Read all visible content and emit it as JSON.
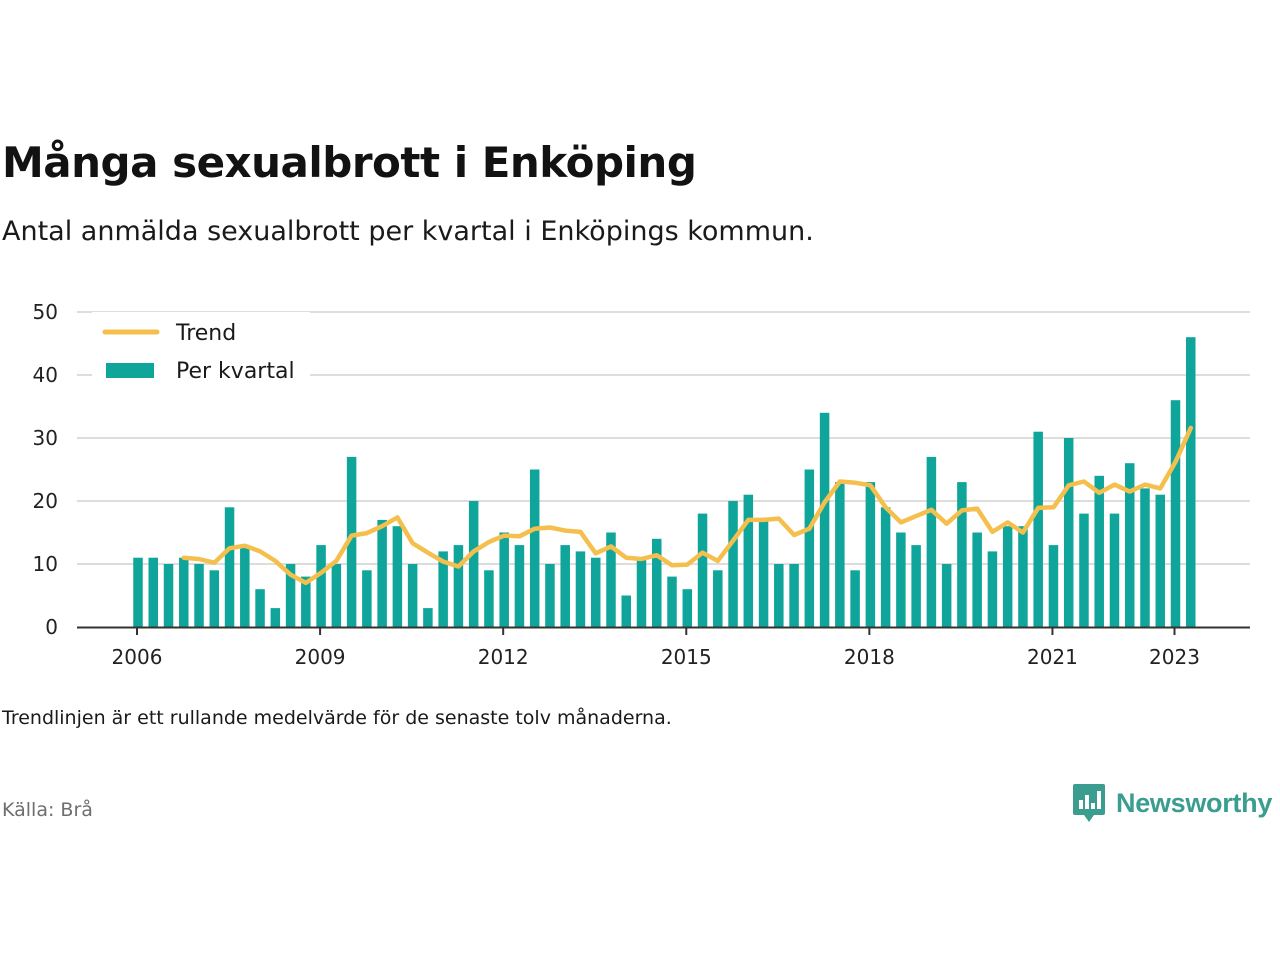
{
  "title": "Många sexualbrott i Enköping",
  "subtitle": "Antal anmälda sexualbrott per kvartal i Enköpings kommun.",
  "note": "Trendlinjen är ett rullande medelvärde för de senaste tolv månaderna.",
  "source": "Källa: Brå",
  "brand": {
    "name": "Newsworthy",
    "logo_icon": "newsworthy-logo-icon",
    "color": "#3a9d8f"
  },
  "colors": {
    "bars": "#10a59a",
    "trend": "#f5bf4d",
    "grid": "#dddddd",
    "axis": "#333333"
  },
  "chart_data": {
    "type": "bar",
    "x_axis": {
      "start_year": 2006,
      "ticks": [
        "2006",
        "2009",
        "2012",
        "2015",
        "2018",
        "2021",
        "2023"
      ],
      "tick_years": [
        2006,
        2009,
        2012,
        2015,
        2018,
        2021,
        2023
      ]
    },
    "y_axis": {
      "ticks": [
        "0",
        "10",
        "20",
        "30",
        "40",
        "50"
      ],
      "ylim": [
        0,
        50
      ]
    },
    "grid": true,
    "legend": {
      "placement": "top-left",
      "entries": [
        {
          "label": "Trend",
          "kind": "line"
        },
        {
          "label": "Per kvartal",
          "kind": "bar"
        }
      ]
    },
    "series": [
      {
        "name": "Per kvartal",
        "kind": "bar",
        "values": [
          11,
          11,
          10,
          11,
          10,
          9,
          19,
          13,
          6,
          3,
          10,
          8,
          13,
          10,
          27,
          9,
          17,
          16,
          10,
          3,
          12,
          13,
          20,
          9,
          15,
          13,
          25,
          10,
          13,
          12,
          11,
          15,
          5,
          11,
          14,
          8,
          6,
          18,
          9,
          20,
          21,
          17,
          10,
          10,
          25,
          34,
          23,
          9,
          23,
          19,
          15,
          13,
          27,
          10,
          23,
          15,
          12,
          16,
          16,
          31,
          13,
          30,
          18,
          24,
          18,
          26,
          22,
          21,
          36,
          46
        ]
      },
      {
        "name": "Trend",
        "kind": "line",
        "start_index": 3,
        "values": [
          11,
          10.8,
          10.2,
          12.5,
          12.9,
          12,
          10.5,
          8.3,
          7,
          8.6,
          10.5,
          14.5,
          14.9,
          16,
          17.4,
          13.3,
          11.8,
          10.4,
          9.6,
          12,
          13.5,
          14.5,
          14.4,
          15.6,
          15.8,
          15.3,
          15.1,
          11.7,
          12.8,
          11,
          10.8,
          11.4,
          9.8,
          9.9,
          11.8,
          10.5,
          13.7,
          17,
          17,
          17.2,
          14.6,
          15.6,
          19.8,
          23.1,
          22.9,
          22.5,
          19,
          16.6,
          17.6,
          18.6,
          16.4,
          18.5,
          18.8,
          15.1,
          16.6,
          15,
          18.9,
          19,
          22.5,
          23.1,
          21.3,
          22.6,
          21.5,
          22.6,
          22,
          26.2,
          31.6
        ]
      }
    ]
  }
}
